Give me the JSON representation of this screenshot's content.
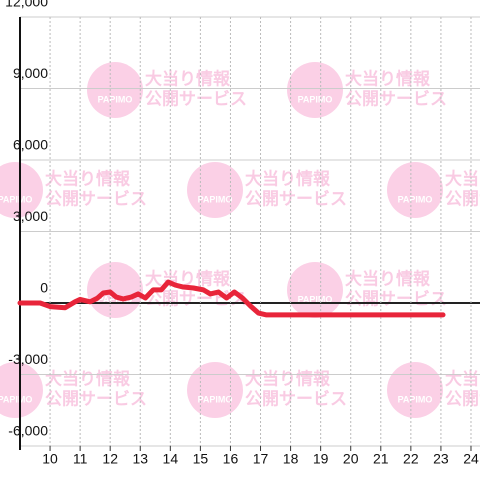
{
  "chart_data": {
    "type": "line",
    "watermark": [
      "大当り情報",
      "公開サービス",
      "PAPIMO"
    ],
    "x": [
      9.0,
      9.67,
      10.0,
      10.5,
      10.83,
      11.0,
      11.33,
      11.57,
      11.77,
      12.0,
      12.2,
      12.43,
      12.7,
      12.93,
      13.17,
      13.43,
      13.7,
      13.93,
      14.17,
      14.43,
      14.77,
      15.1,
      15.33,
      15.6,
      15.87,
      16.13,
      16.4,
      16.67,
      16.93,
      17.2,
      23.07
    ],
    "series": [
      {
        "color": "#e8253a",
        "values": [
          0,
          0,
          -150,
          -200,
          50,
          150,
          50,
          200,
          420,
          460,
          250,
          170,
          250,
          380,
          210,
          550,
          550,
          880,
          750,
          670,
          630,
          550,
          380,
          460,
          210,
          460,
          210,
          -130,
          -420,
          -500,
          -500
        ]
      }
    ],
    "xlim": [
      9,
      24.3
    ],
    "xticks": [
      10,
      11,
      12,
      13,
      14,
      15,
      16,
      17,
      18,
      19,
      20,
      21,
      22,
      23,
      24
    ],
    "ylim": [
      -6000,
      12000
    ],
    "yticks": [
      {
        "value": -6000,
        "label": "-6,000"
      },
      {
        "value": -3000,
        "label": "-3,000"
      },
      0,
      {
        "value": 3000,
        "label": "3,000"
      },
      {
        "value": 6000,
        "label": "6,000"
      },
      {
        "value": 9000,
        "label": "9,000"
      },
      {
        "value": 12000,
        "label": "12,000"
      }
    ],
    "grid": true
  }
}
